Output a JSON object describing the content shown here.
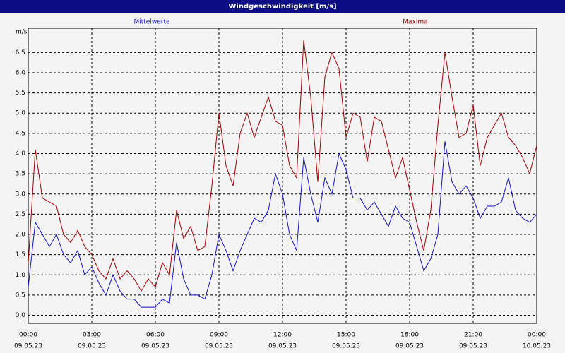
{
  "chart_data": {
    "type": "line",
    "title": "Windgeschwindigkeit [m/s]",
    "y_label": "m/s",
    "x": [
      0,
      20,
      40,
      60,
      80,
      100,
      120,
      140,
      160,
      180,
      200,
      220,
      240,
      260,
      280,
      300,
      320,
      340,
      360,
      380,
      400,
      420,
      440,
      460,
      480,
      500,
      520,
      540,
      560,
      580,
      600,
      620,
      640,
      660,
      680,
      700,
      720,
      740,
      760,
      780,
      800,
      820,
      840,
      860,
      880,
      900,
      920,
      940,
      960,
      980,
      1000,
      1020,
      1040,
      1060,
      1080,
      1100,
      1120,
      1140,
      1160,
      1180,
      1200,
      1220,
      1240,
      1260,
      1280,
      1300,
      1320,
      1340,
      1360,
      1380,
      1400,
      1420,
      1440
    ],
    "series": [
      {
        "name": "Mittelwerte",
        "color": "#1414c8",
        "values": [
          0.7,
          2.3,
          2.0,
          1.7,
          2.0,
          1.5,
          1.3,
          1.6,
          1.0,
          1.2,
          0.8,
          0.5,
          1.0,
          0.6,
          0.4,
          0.4,
          0.2,
          0.2,
          0.2,
          0.4,
          0.3,
          1.8,
          0.9,
          0.5,
          0.5,
          0.4,
          1.0,
          2.0,
          1.6,
          1.1,
          1.6,
          2.0,
          2.4,
          2.3,
          2.6,
          3.5,
          3.0,
          2.0,
          1.6,
          3.9,
          3.0,
          2.3,
          3.4,
          3.0,
          4.0,
          3.6,
          2.9,
          2.9,
          2.6,
          2.8,
          2.5,
          2.2,
          2.7,
          2.4,
          2.3,
          1.7,
          1.1,
          1.4,
          2.0,
          4.3,
          3.3,
          3.0,
          3.2,
          2.9,
          2.4,
          2.7,
          2.7,
          2.8,
          3.4,
          2.6,
          2.4,
          2.3,
          2.5
        ]
      },
      {
        "name": "Maxima",
        "color": "#a00000",
        "values": [
          1.3,
          4.1,
          2.9,
          2.8,
          2.7,
          2.0,
          1.8,
          2.1,
          1.7,
          1.5,
          1.1,
          0.9,
          1.4,
          0.9,
          1.1,
          0.9,
          0.6,
          0.9,
          0.7,
          1.3,
          1.0,
          2.6,
          1.9,
          2.2,
          1.6,
          1.7,
          3.2,
          5.0,
          3.7,
          3.2,
          4.5,
          5.0,
          4.4,
          4.9,
          5.4,
          4.8,
          4.7,
          3.7,
          3.4,
          6.8,
          5.4,
          3.3,
          5.9,
          6.5,
          6.1,
          4.4,
          5.0,
          4.9,
          3.8,
          4.9,
          4.8,
          4.1,
          3.4,
          3.9,
          3.1,
          2.3,
          1.6,
          2.6,
          4.7,
          6.5,
          5.4,
          4.4,
          4.5,
          5.2,
          3.7,
          4.4,
          4.7,
          5.0,
          4.4,
          4.2,
          3.9,
          3.5,
          4.2
        ]
      }
    ],
    "xlim": [
      0,
      1440
    ],
    "xticks": [
      {
        "value": 0,
        "label": "00:00",
        "date": "09.05.23"
      },
      {
        "value": 180,
        "label": "03:00",
        "date": "09.05.23"
      },
      {
        "value": 360,
        "label": "06:00",
        "date": "09.05.23"
      },
      {
        "value": 540,
        "label": "09:00",
        "date": "09.05.23"
      },
      {
        "value": 720,
        "label": "12:00",
        "date": "09.05.23"
      },
      {
        "value": 900,
        "label": "15:00",
        "date": "09.05.23"
      },
      {
        "value": 1080,
        "label": "18:00",
        "date": "09.05.23"
      },
      {
        "value": 1260,
        "label": "21:00",
        "date": "09.05.23"
      },
      {
        "value": 1440,
        "label": "00:00",
        "date": "10.05.23"
      }
    ],
    "ylim": [
      -0.2,
      7.1
    ],
    "yticks": [
      {
        "value": 0,
        "label": "0,0"
      },
      {
        "value": 0.5,
        "label": "0,5"
      },
      {
        "value": 1,
        "label": "1,0"
      },
      {
        "value": 1.5,
        "label": "1,5"
      },
      {
        "value": 2,
        "label": "2,0"
      },
      {
        "value": 2.5,
        "label": "2,5"
      },
      {
        "value": 3,
        "label": "3,0"
      },
      {
        "value": 3.5,
        "label": "3,5"
      },
      {
        "value": 4,
        "label": "4,0"
      },
      {
        "value": 4.5,
        "label": "4,5"
      },
      {
        "value": 5,
        "label": "5,0"
      },
      {
        "value": 5.5,
        "label": "5,5"
      },
      {
        "value": 6,
        "label": "6,0"
      },
      {
        "value": 6.5,
        "label": "6,5"
      }
    ],
    "grid": true
  }
}
